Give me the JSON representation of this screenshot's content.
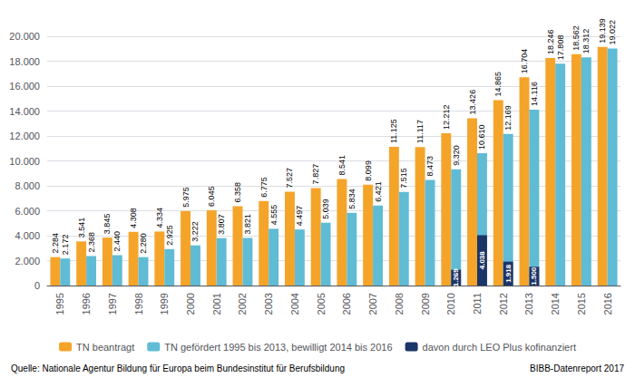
{
  "chart_data": {
    "type": "bar",
    "categories": [
      "1995",
      "1996",
      "1997",
      "1998",
      "1999",
      "2000",
      "2001",
      "2002",
      "2003",
      "2004",
      "2005",
      "2006",
      "2007",
      "2008",
      "2009",
      "2010",
      "2011",
      "2012",
      "2013",
      "2014",
      "2015",
      "2016"
    ],
    "series": [
      {
        "name": "TN beantragt",
        "color": "#F5A42A",
        "values": [
          2284,
          3541,
          3845,
          4308,
          4334,
          5975,
          6045,
          6358,
          6775,
          7527,
          7827,
          8541,
          8099,
          11125,
          11117,
          12212,
          13426,
          14865,
          16704,
          18246,
          18562,
          19139
        ],
        "value_labels": [
          "2.284",
          "3.541",
          "3.845",
          "4.308",
          "4.334",
          "5.975",
          "6.045",
          "6.358",
          "6.775",
          "7.527",
          "7.827",
          "8.541",
          "8.099",
          "11.125",
          "11.117",
          "12.212",
          "13.426",
          "14.865",
          "16.704",
          "18.246",
          "18.562",
          "19.139"
        ]
      },
      {
        "name": "TN gefördert 1995 bis 2013, bewilligt 2014 bis 2016",
        "color": "#60BBD5",
        "values": [
          2172,
          2368,
          2440,
          2280,
          2925,
          3222,
          3807,
          3821,
          4555,
          4497,
          5039,
          5834,
          6421,
          7515,
          8473,
          9320,
          10610,
          12169,
          14116,
          17808,
          18312,
          19022
        ],
        "value_labels": [
          "2.172",
          "2.368",
          "2.440",
          "2.280",
          "2.925",
          "3.222",
          "3.807",
          "3.821",
          "4.555",
          "4.497",
          "5.039",
          "5.834",
          "6.421",
          "7.515",
          "8.473",
          "9.320",
          "10.610",
          "12.169",
          "14.116",
          "17.808",
          "18.312",
          "19.022"
        ]
      },
      {
        "name": "davon durch LEO Plus kofinanziert",
        "color": "#1C3568",
        "values": [
          null,
          null,
          null,
          null,
          null,
          null,
          null,
          null,
          null,
          null,
          null,
          null,
          null,
          null,
          null,
          1269,
          4038,
          1918,
          1500,
          null,
          null,
          null
        ],
        "value_labels": [
          null,
          null,
          null,
          null,
          null,
          null,
          null,
          null,
          null,
          null,
          null,
          null,
          null,
          null,
          null,
          "1.269",
          "4.038",
          "1.918",
          "1.500",
          null,
          null,
          null
        ]
      }
    ],
    "ylim": [
      0,
      20000
    ],
    "yticks": [
      0,
      {
        "value": 2000,
        "label": "2.000"
      },
      {
        "value": 4000,
        "label": "4.000"
      },
      {
        "value": 6000,
        "label": "6.000"
      },
      {
        "value": 8000,
        "label": "8.000"
      },
      {
        "value": 10000,
        "label": "10.000"
      },
      {
        "value": 12000,
        "label": "12.000"
      },
      {
        "value": 14000,
        "label": "14.000"
      },
      {
        "value": 16000,
        "label": "16.000"
      },
      {
        "value": 18000,
        "label": "18.000"
      },
      {
        "value": 20000,
        "label": "20.000"
      }
    ],
    "grid": true,
    "legend": "bottom",
    "data_labels": true,
    "annotations": [
      "Quelle: Nationale Agentur Bildung für Europa beim Bundesinstitut für Berufsbildung",
      "BIBB-Datenreport 2017"
    ]
  }
}
